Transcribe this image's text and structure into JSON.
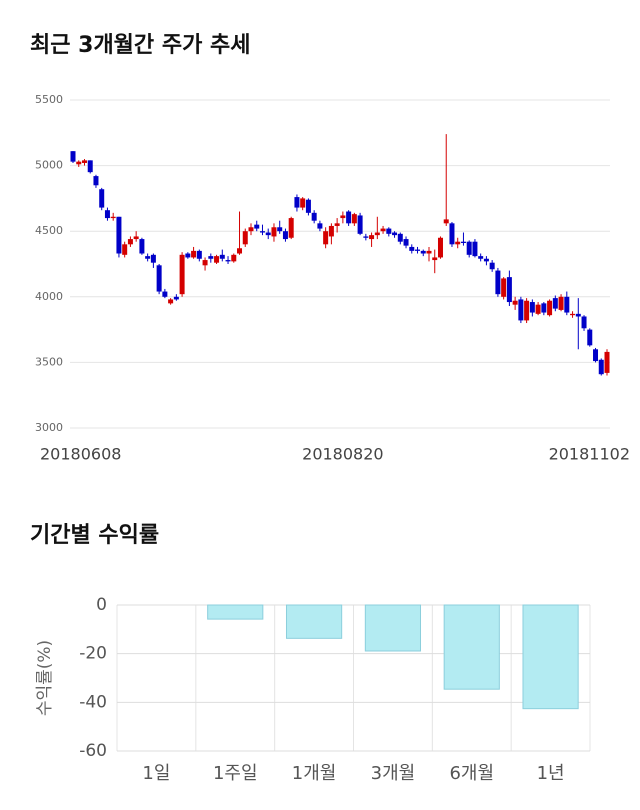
{
  "chart_data": [
    {
      "type": "candlestick",
      "title": "최근 3개월간 주가 추세",
      "up_color": "#d40000",
      "down_color": "#0000c8",
      "categories": [
        "20180608",
        null,
        null,
        null,
        null,
        null,
        null,
        null,
        null,
        null,
        null,
        null,
        null,
        null,
        null,
        null,
        null,
        null,
        null,
        null,
        null,
        null,
        null,
        null,
        null,
        null,
        null,
        null,
        null,
        null,
        null,
        null,
        null,
        null,
        null,
        null,
        null,
        null,
        null,
        null,
        null,
        null,
        null,
        null,
        null,
        null,
        null,
        "20180820",
        null,
        null,
        null,
        null,
        null,
        null,
        null,
        null,
        null,
        null,
        null,
        null,
        null,
        null,
        null,
        null,
        null,
        null,
        null,
        null,
        null,
        null,
        null,
        null,
        null,
        null,
        null,
        null,
        null,
        null,
        null,
        null,
        null,
        null,
        null,
        null,
        null,
        null,
        null,
        null,
        null,
        null,
        null,
        null,
        null,
        "20181102"
      ],
      "values": [
        [
          5110,
          5110,
          5020,
          5030
        ],
        [
          5010,
          5040,
          4990,
          5030
        ],
        [
          5020,
          5050,
          5000,
          5040
        ],
        [
          5040,
          5040,
          4940,
          4950
        ],
        [
          4920,
          4930,
          4830,
          4850
        ],
        [
          4820,
          4830,
          4660,
          4680
        ],
        [
          4660,
          4680,
          4580,
          4600
        ],
        [
          4600,
          4640,
          4580,
          4610
        ],
        [
          4610,
          4610,
          4300,
          4330
        ],
        [
          4320,
          4420,
          4300,
          4400
        ],
        [
          4400,
          4460,
          4380,
          4440
        ],
        [
          4440,
          4500,
          4420,
          4460
        ],
        [
          4440,
          4450,
          4320,
          4330
        ],
        [
          4310,
          4330,
          4270,
          4290
        ],
        [
          4320,
          4330,
          4220,
          4260
        ],
        [
          4240,
          4250,
          4020,
          4040
        ],
        [
          4040,
          4060,
          3990,
          4000
        ],
        [
          3950,
          3990,
          3940,
          3980
        ],
        [
          4000,
          4020,
          3970,
          3980
        ],
        [
          4020,
          4340,
          4000,
          4320
        ],
        [
          4330,
          4340,
          4290,
          4300
        ],
        [
          4300,
          4380,
          4290,
          4350
        ],
        [
          4350,
          4360,
          4270,
          4290
        ],
        [
          4240,
          4300,
          4200,
          4280
        ],
        [
          4310,
          4330,
          4260,
          4290
        ],
        [
          4260,
          4320,
          4250,
          4310
        ],
        [
          4320,
          4360,
          4270,
          4290
        ],
        [
          4280,
          4310,
          4250,
          4270
        ],
        [
          4270,
          4330,
          4260,
          4320
        ],
        [
          4330,
          4650,
          4320,
          4370
        ],
        [
          4400,
          4520,
          4380,
          4500
        ],
        [
          4500,
          4560,
          4470,
          4530
        ],
        [
          4550,
          4580,
          4500,
          4520
        ],
        [
          4500,
          4550,
          4470,
          4490
        ],
        [
          4490,
          4520,
          4440,
          4470
        ],
        [
          4460,
          4560,
          4420,
          4530
        ],
        [
          4530,
          4580,
          4480,
          4500
        ],
        [
          4500,
          4520,
          4420,
          4440
        ],
        [
          4450,
          4610,
          4440,
          4600
        ],
        [
          4760,
          4780,
          4650,
          4680
        ],
        [
          4680,
          4760,
          4660,
          4750
        ],
        [
          4740,
          4750,
          4620,
          4640
        ],
        [
          4640,
          4660,
          4560,
          4580
        ],
        [
          4560,
          4580,
          4500,
          4520
        ],
        [
          4400,
          4530,
          4370,
          4500
        ],
        [
          4460,
          4560,
          4400,
          4540
        ],
        [
          4540,
          4600,
          4490,
          4560
        ],
        [
          4600,
          4650,
          4560,
          4620
        ],
        [
          4650,
          4660,
          4540,
          4560
        ],
        [
          4560,
          4640,
          4540,
          4630
        ],
        [
          4620,
          4640,
          4470,
          4480
        ],
        [
          4460,
          4480,
          4430,
          4450
        ],
        [
          4440,
          4490,
          4380,
          4470
        ],
        [
          4470,
          4610,
          4440,
          4490
        ],
        [
          4500,
          4540,
          4480,
          4520
        ],
        [
          4520,
          4530,
          4460,
          4480
        ],
        [
          4490,
          4500,
          4450,
          4470
        ],
        [
          4480,
          4490,
          4400,
          4420
        ],
        [
          4440,
          4460,
          4370,
          4390
        ],
        [
          4380,
          4400,
          4330,
          4350
        ],
        [
          4360,
          4380,
          4330,
          4350
        ],
        [
          4350,
          4360,
          4310,
          4330
        ],
        [
          4330,
          4380,
          4270,
          4350
        ],
        [
          4280,
          4360,
          4180,
          4300
        ],
        [
          4300,
          4460,
          4290,
          4450
        ],
        [
          4560,
          5240,
          4540,
          4590
        ],
        [
          4560,
          4570,
          4380,
          4400
        ],
        [
          4400,
          4450,
          4370,
          4420
        ],
        [
          4420,
          4490,
          4390,
          4410
        ],
        [
          4420,
          4430,
          4300,
          4320
        ],
        [
          4420,
          4440,
          4300,
          4310
        ],
        [
          4310,
          4330,
          4270,
          4290
        ],
        [
          4290,
          4310,
          4240,
          4270
        ],
        [
          4260,
          4280,
          4190,
          4210
        ],
        [
          4200,
          4220,
          4000,
          4020
        ],
        [
          4000,
          4150,
          3980,
          4140
        ],
        [
          4150,
          4200,
          3930,
          3960
        ],
        [
          3940,
          4000,
          3900,
          3970
        ],
        [
          3980,
          4000,
          3800,
          3820
        ],
        [
          3820,
          3990,
          3800,
          3970
        ],
        [
          3960,
          3980,
          3850,
          3880
        ],
        [
          3870,
          3960,
          3860,
          3940
        ],
        [
          3950,
          3960,
          3860,
          3880
        ],
        [
          3860,
          3980,
          3850,
          3970
        ],
        [
          3990,
          4010,
          3890,
          3910
        ],
        [
          3900,
          4020,
          3890,
          4000
        ],
        [
          4000,
          4040,
          3860,
          3880
        ],
        [
          3860,
          3890,
          3840,
          3870
        ],
        [
          3870,
          3990,
          3600,
          3850
        ],
        [
          3850,
          3860,
          3740,
          3760
        ],
        [
          3750,
          3760,
          3620,
          3630
        ],
        [
          3600,
          3610,
          3500,
          3510
        ],
        [
          3520,
          3530,
          3400,
          3410
        ],
        [
          3420,
          3600,
          3400,
          3580
        ]
      ],
      "ylim": [
        3000,
        5500
      ],
      "yticks": [
        3000,
        3500,
        4000,
        4500,
        5000,
        5500
      ],
      "grid": true
    },
    {
      "type": "bar",
      "title": "기간별 수익률",
      "y_label": "수익률(%)",
      "color": "#b3ebf2",
      "border_color": "#8ccfdc",
      "categories": [
        "1일",
        "1주일",
        "1개월",
        "3개월",
        "6개월",
        "1년"
      ],
      "values": [
        0,
        -5.8,
        -13.7,
        -18.9,
        -34.6,
        -42.6
      ],
      "ylim": [
        -60,
        0
      ],
      "yticks": [
        0,
        -20,
        -40,
        -60
      ],
      "grid": true
    }
  ]
}
